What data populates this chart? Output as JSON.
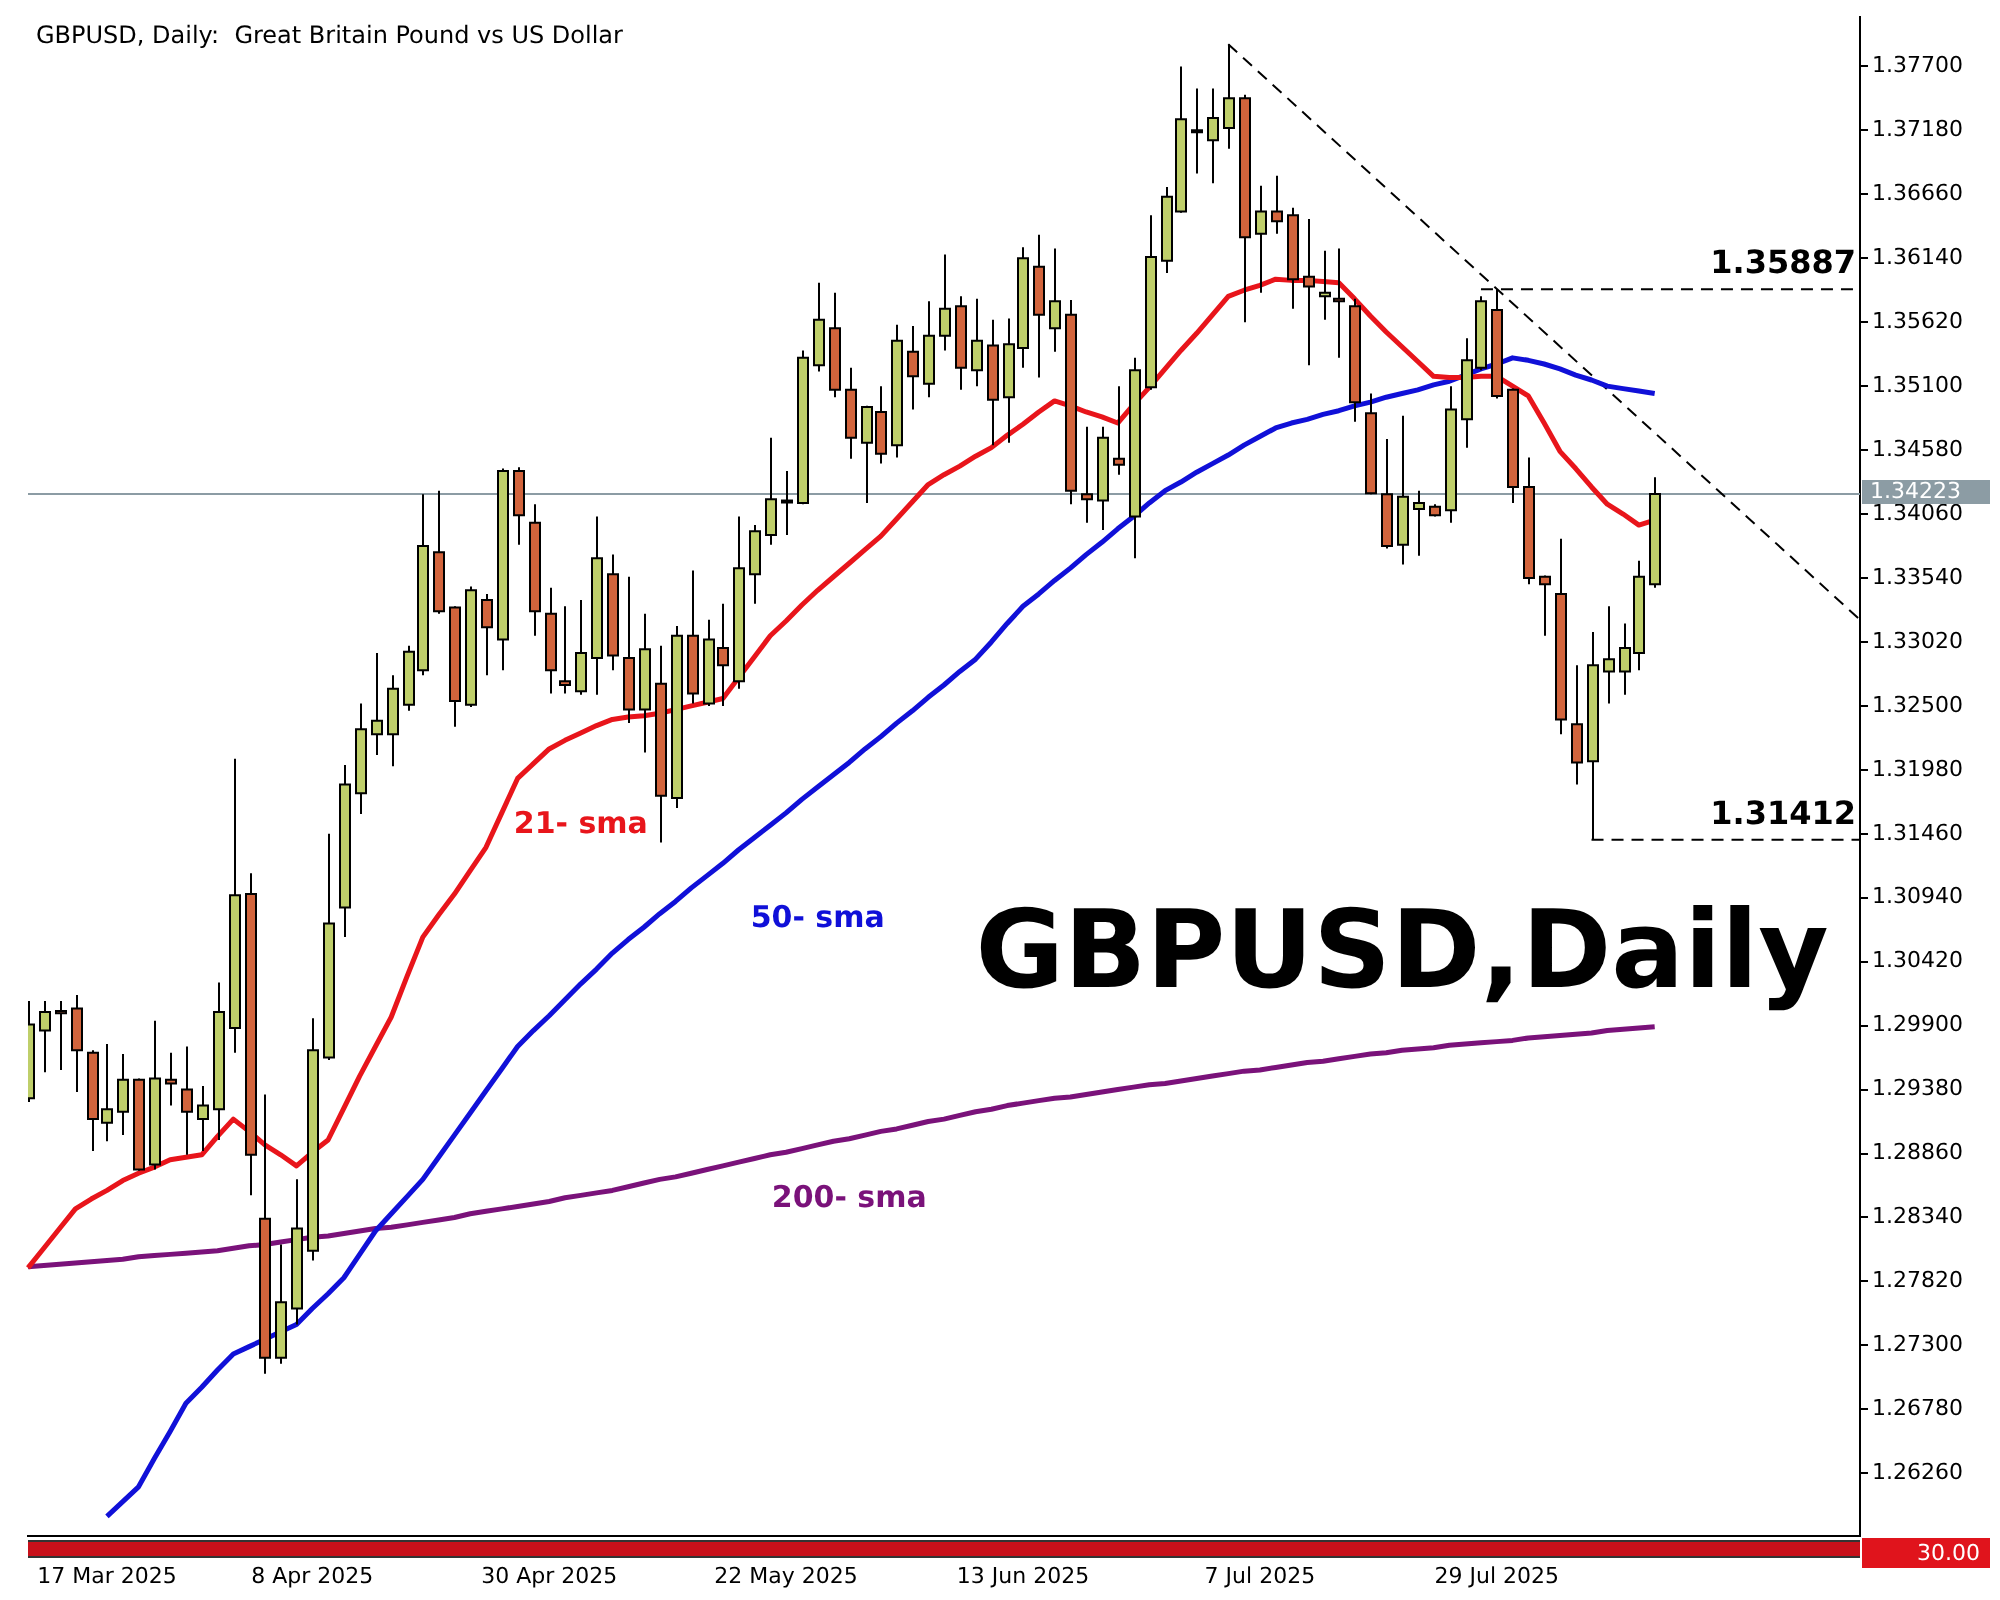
{
  "chart_data": {
    "type": "candlestick",
    "title": "GBPUSD, Daily:  Great Britain Pound vs US Dollar",
    "categories": [
      null,
      null,
      null,
      null,
      null,
      "17 Mar 2025",
      null,
      null,
      null,
      null,
      null,
      null,
      null,
      null,
      null,
      null,
      null,
      null,
      "8 Apr 2025",
      null,
      null,
      null,
      null,
      null,
      null,
      null,
      null,
      null,
      null,
      null,
      null,
      null,
      null,
      "30 Apr 2025",
      null,
      null,
      null,
      null,
      null,
      null,
      null,
      null,
      null,
      null,
      null,
      null,
      null,
      null,
      "22 May 2025",
      null,
      null,
      null,
      null,
      null,
      null,
      null,
      null,
      null,
      null,
      null,
      null,
      null,
      null,
      "13 Jun 2025",
      null,
      null,
      null,
      null,
      null,
      null,
      null,
      null,
      null,
      null,
      null,
      null,
      null,
      null,
      "7 Jul 2025",
      null,
      null,
      null,
      null,
      null,
      null,
      null,
      null,
      null,
      null,
      null,
      null,
      null,
      null,
      "29 Jul 2025",
      null,
      null,
      null,
      null,
      null,
      null,
      null,
      null,
      null,
      null,
      null,
      null,
      null,
      null,
      null,
      null,
      null,
      null,
      null,
      null,
      null,
      null,
      null
    ],
    "ohlc": [
      [
        1.2931,
        1.301,
        1.2928,
        1.2991
      ],
      [
        1.2986,
        1.301,
        1.2952,
        1.3001
      ],
      [
        1.3002,
        1.301,
        1.2954,
        1.3
      ],
      [
        1.3004,
        1.3015,
        1.2936,
        1.297
      ],
      [
        1.2968,
        1.297,
        1.2888,
        1.2914
      ],
      [
        1.2911,
        1.2975,
        1.2896,
        1.2922
      ],
      [
        1.292,
        1.2967,
        1.2901,
        1.2946
      ],
      [
        1.2946,
        1.2947,
        1.2872,
        1.2873
      ],
      [
        1.2877,
        1.2994,
        1.2873,
        1.2947
      ],
      [
        1.2946,
        1.2968,
        1.2925,
        1.2943
      ],
      [
        1.2938,
        1.2973,
        1.2885,
        1.292
      ],
      [
        1.2914,
        1.2941,
        1.2888,
        1.2925
      ],
      [
        1.2922,
        1.3025,
        1.2897,
        1.3001
      ],
      [
        1.2988,
        1.3207,
        1.2968,
        1.3096
      ],
      [
        1.3097,
        1.3114,
        1.2852,
        1.2885
      ],
      [
        1.2833,
        1.2934,
        1.2707,
        1.272
      ],
      [
        1.272,
        1.2812,
        1.2715,
        1.2765
      ],
      [
        1.276,
        1.2865,
        1.2747,
        1.2825
      ],
      [
        1.2807,
        1.2996,
        1.2799,
        1.297
      ],
      [
        1.2964,
        1.3146,
        1.2962,
        1.3073
      ],
      [
        1.3086,
        1.3202,
        1.3062,
        1.3186
      ],
      [
        1.3179,
        1.3252,
        1.3162,
        1.3231
      ],
      [
        1.3227,
        1.3293,
        1.321,
        1.3238
      ],
      [
        1.3227,
        1.3275,
        1.3201,
        1.3264
      ],
      [
        1.3251,
        1.3299,
        1.3246,
        1.3294
      ],
      [
        1.3279,
        1.3422,
        1.3275,
        1.338
      ],
      [
        1.3375,
        1.3425,
        1.3325,
        1.3327
      ],
      [
        1.333,
        1.3331,
        1.3233,
        1.3254
      ],
      [
        1.3251,
        1.3347,
        1.3249,
        1.3344
      ],
      [
        1.3336,
        1.3341,
        1.3275,
        1.3314
      ],
      [
        1.3304,
        1.3443,
        1.3279,
        1.3441
      ],
      [
        1.3441,
        1.3444,
        1.3381,
        1.3405
      ],
      [
        1.3399,
        1.3414,
        1.3307,
        1.3327
      ],
      [
        1.3325,
        1.3346,
        1.326,
        1.3279
      ],
      [
        1.327,
        1.3331,
        1.326,
        1.3267
      ],
      [
        1.3262,
        1.3336,
        1.3259,
        1.3293
      ],
      [
        1.3289,
        1.3404,
        1.3259,
        1.337
      ],
      [
        1.3357,
        1.3373,
        1.3279,
        1.3291
      ],
      [
        1.3289,
        1.3355,
        1.3236,
        1.3247
      ],
      [
        1.3247,
        1.3325,
        1.3212,
        1.3296
      ],
      [
        1.3268,
        1.3299,
        1.3139,
        1.3177
      ],
      [
        1.3175,
        1.3315,
        1.3167,
        1.3307
      ],
      [
        1.3307,
        1.336,
        1.3252,
        1.326
      ],
      [
        1.3252,
        1.332,
        1.325,
        1.3304
      ],
      [
        1.3297,
        1.3333,
        1.325,
        1.3283
      ],
      [
        1.327,
        1.3404,
        1.3264,
        1.3362
      ],
      [
        1.3357,
        1.3397,
        1.3333,
        1.3392
      ],
      [
        1.3389,
        1.3468,
        1.3381,
        1.3418
      ],
      [
        1.3417,
        1.3441,
        1.3389,
        1.3416
      ],
      [
        1.3415,
        1.3539,
        1.3414,
        1.3533
      ],
      [
        1.3527,
        1.3594,
        1.3522,
        1.3564
      ],
      [
        1.3557,
        1.3586,
        1.3501,
        1.3507
      ],
      [
        1.3507,
        1.3525,
        1.3451,
        1.3468
      ],
      [
        1.3464,
        1.3494,
        1.3415,
        1.3493
      ],
      [
        1.3489,
        1.351,
        1.3447,
        1.3455
      ],
      [
        1.3462,
        1.356,
        1.3452,
        1.3547
      ],
      [
        1.3538,
        1.3559,
        1.3491,
        1.3518
      ],
      [
        1.3512,
        1.3579,
        1.3501,
        1.3551
      ],
      [
        1.3551,
        1.3617,
        1.3539,
        1.3573
      ],
      [
        1.3575,
        1.3583,
        1.3507,
        1.3525
      ],
      [
        1.3523,
        1.3581,
        1.351,
        1.3547
      ],
      [
        1.3543,
        1.3564,
        1.3462,
        1.3499
      ],
      [
        1.3501,
        1.3565,
        1.3464,
        1.3544
      ],
      [
        1.3541,
        1.3623,
        1.3525,
        1.3614
      ],
      [
        1.3607,
        1.3633,
        1.3517,
        1.3568
      ],
      [
        1.3557,
        1.3622,
        1.3538,
        1.3579
      ],
      [
        1.3568,
        1.358,
        1.3414,
        1.3425
      ],
      [
        1.3422,
        1.3477,
        1.3399,
        1.3418
      ],
      [
        1.3417,
        1.3477,
        1.3393,
        1.3468
      ],
      [
        1.3451,
        1.351,
        1.3438,
        1.3446
      ],
      [
        1.3404,
        1.3533,
        1.337,
        1.3523
      ],
      [
        1.3509,
        1.3649,
        1.3507,
        1.3615
      ],
      [
        1.3612,
        1.3672,
        1.3602,
        1.3664
      ],
      [
        1.3652,
        1.377,
        1.3651,
        1.3727
      ],
      [
        1.3718,
        1.3752,
        1.3683,
        1.3717
      ],
      [
        1.371,
        1.3752,
        1.3675,
        1.3728
      ],
      [
        1.372,
        1.3788,
        1.3703,
        1.3744
      ],
      [
        1.3744,
        1.3747,
        1.3562,
        1.3631
      ],
      [
        1.3634,
        1.3673,
        1.3586,
        1.3652
      ],
      [
        1.3652,
        1.3681,
        1.3634,
        1.3644
      ],
      [
        1.3649,
        1.3655,
        1.3573,
        1.3597
      ],
      [
        1.3599,
        1.3646,
        1.3527,
        1.3591
      ],
      [
        1.3583,
        1.362,
        1.3564,
        1.3586
      ],
      [
        1.3581,
        1.3622,
        1.3533,
        1.3579
      ],
      [
        1.3575,
        1.3581,
        1.3481,
        1.3497
      ],
      [
        1.3488,
        1.3504,
        1.3422,
        1.3423
      ],
      [
        1.3422,
        1.3467,
        1.3378,
        1.338
      ],
      [
        1.3381,
        1.3486,
        1.3365,
        1.342
      ],
      [
        1.341,
        1.3425,
        1.3372,
        1.3415
      ],
      [
        1.3412,
        1.3414,
        1.3404,
        1.3405
      ],
      [
        1.3409,
        1.351,
        1.3399,
        1.3491
      ],
      [
        1.3483,
        1.3549,
        1.346,
        1.3531
      ],
      [
        1.3525,
        1.3583,
        1.3523,
        1.3579
      ],
      [
        1.3572,
        1.35887,
        1.35,
        1.3502
      ],
      [
        1.3507,
        1.3508,
        1.3415,
        1.3428
      ],
      [
        1.3428,
        1.3452,
        1.3349,
        1.3354
      ],
      [
        1.3355,
        1.3356,
        1.3307,
        1.3349
      ],
      [
        1.3341,
        1.3386,
        1.3227,
        1.3239
      ],
      [
        1.3235,
        1.3283,
        1.3186,
        1.3204
      ],
      [
        1.3205,
        1.331,
        1.31412,
        1.3283
      ],
      [
        1.3278,
        1.3331,
        1.3252,
        1.3288
      ],
      [
        1.3278,
        1.3317,
        1.3259,
        1.3297
      ],
      [
        1.3293,
        1.3368,
        1.3279,
        1.3355
      ],
      [
        1.3349,
        1.3436,
        1.3346,
        1.34223
      ],
      null,
      null,
      null,
      null,
      null,
      null,
      null,
      null,
      null,
      null,
      null,
      null,
      null
    ],
    "colors": [
      "#bfcf6a",
      "#bfcf6a",
      "#d2643c",
      "#d2643c",
      "#d2643c",
      "#bfcf6a",
      "#bfcf6a",
      "#d2643c",
      "#bfcf6a",
      "#d2643c",
      "#d2643c",
      "#bfcf6a",
      "#bfcf6a",
      "#bfcf6a",
      "#d2643c",
      "#d2643c",
      "#bfcf6a",
      "#bfcf6a",
      "#bfcf6a",
      "#bfcf6a",
      "#bfcf6a",
      "#bfcf6a",
      "#bfcf6a",
      "#bfcf6a",
      "#bfcf6a",
      "#bfcf6a",
      "#d2643c",
      "#d2643c",
      "#bfcf6a",
      "#d2643c",
      "#bfcf6a",
      "#d2643c",
      "#d2643c",
      "#d2643c",
      "#d2643c",
      "#bfcf6a",
      "#bfcf6a",
      "#d2643c",
      "#d2643c",
      "#bfcf6a",
      "#d2643c",
      "#bfcf6a",
      "#d2643c",
      "#bfcf6a",
      "#d2643c",
      "#bfcf6a",
      "#bfcf6a",
      "#bfcf6a",
      "#d2643c",
      "#bfcf6a",
      "#bfcf6a",
      "#d2643c",
      "#d2643c",
      "#bfcf6a",
      "#d2643c",
      "#bfcf6a",
      "#d2643c",
      "#bfcf6a",
      "#bfcf6a",
      "#d2643c",
      "#bfcf6a",
      "#d2643c",
      "#bfcf6a",
      "#bfcf6a",
      "#d2643c",
      "#bfcf6a",
      "#d2643c",
      "#d2643c",
      "#bfcf6a",
      "#d2643c",
      "#bfcf6a",
      "#bfcf6a",
      "#bfcf6a",
      "#bfcf6a",
      "#d2643c",
      "#bfcf6a",
      "#bfcf6a",
      "#d2643c",
      "#bfcf6a",
      "#d2643c",
      "#d2643c",
      "#d2643c",
      "#bfcf6a",
      "#d2643c",
      "#d2643c",
      "#d2643c",
      "#d2643c",
      "#bfcf6a",
      "#bfcf6a",
      "#d2643c",
      "#bfcf6a",
      "#bfcf6a",
      "#bfcf6a",
      "#d2643c",
      "#d2643c",
      "#d2643c",
      "#d2643c",
      "#d2643c",
      "#d2643c",
      "#bfcf6a",
      "#bfcf6a",
      "#bfcf6a",
      "#bfcf6a",
      "#bfcf6a",
      null,
      null,
      null,
      null,
      null,
      null,
      null,
      null,
      null,
      null,
      null,
      null,
      null
    ],
    "series": [
      {
        "type": "line",
        "name": "21- sma",
        "color": "#e8151b",
        "values": [
          1.2793,
          1.2809,
          1.2825,
          1.2841,
          1.2849,
          1.2856,
          1.2864,
          1.287,
          1.2875,
          1.2881,
          1.2883,
          1.2885,
          1.29,
          1.2914,
          1.2904,
          1.2893,
          1.2885,
          1.2876,
          1.2887,
          1.2897,
          1.2923,
          1.2949,
          1.2973,
          1.2997,
          1.303,
          1.3062,
          1.308,
          1.3097,
          1.3116,
          1.3135,
          1.3163,
          1.3191,
          1.3203,
          1.3215,
          1.3222,
          1.3228,
          1.3234,
          1.3239,
          1.3241,
          1.3242,
          1.3244,
          1.3247,
          1.325,
          1.3253,
          1.3256,
          1.3273,
          1.329,
          1.3307,
          1.3319,
          1.3332,
          1.3344,
          1.3355,
          1.3366,
          1.3377,
          1.3388,
          1.3402,
          1.3416,
          1.343,
          1.3438,
          1.3445,
          1.3453,
          1.346,
          1.347,
          1.3479,
          1.3489,
          1.3498,
          1.3494,
          1.3489,
          1.3485,
          1.348,
          1.3495,
          1.3509,
          1.3524,
          1.3539,
          1.3553,
          1.3568,
          1.3583,
          1.3588,
          1.3592,
          1.3597,
          1.3596,
          1.3596,
          1.3595,
          1.3594,
          1.3581,
          1.3567,
          1.3554,
          1.3542,
          1.353,
          1.3518,
          1.3517,
          1.3517,
          1.3518,
          1.3518,
          1.351,
          1.3502,
          1.348,
          1.3457,
          1.3443,
          1.3428,
          1.3414,
          1.3406,
          1.3397,
          1.3401,
          null,
          null,
          null,
          null,
          null,
          null,
          null,
          null,
          null,
          null,
          null,
          null,
          null
        ]
      },
      {
        "type": "line",
        "name": "50- sma",
        "color": "#1010d8",
        "values": [
          null,
          null,
          null,
          null,
          null,
          1.2591,
          1.2603,
          1.2615,
          1.2638,
          1.266,
          1.2683,
          1.2696,
          1.271,
          1.2723,
          1.2729,
          1.2735,
          1.2741,
          1.2747,
          1.276,
          1.2772,
          1.2785,
          1.2804,
          1.2823,
          1.2837,
          1.2851,
          1.2865,
          1.2883,
          1.2901,
          1.2919,
          1.2937,
          1.2955,
          1.2973,
          1.2986,
          1.2998,
          1.3011,
          1.3024,
          1.3036,
          1.3049,
          1.306,
          1.307,
          1.3081,
          1.3091,
          1.3102,
          1.3112,
          1.3122,
          1.3133,
          1.3143,
          1.3153,
          1.3163,
          1.3174,
          1.3184,
          1.3194,
          1.3204,
          1.3215,
          1.3225,
          1.3236,
          1.3246,
          1.3257,
          1.3267,
          1.3278,
          1.3288,
          1.3302,
          1.3317,
          1.3331,
          1.3341,
          1.3352,
          1.3362,
          1.3373,
          1.3383,
          1.3394,
          1.3404,
          1.3415,
          1.3425,
          1.3432,
          1.344,
          1.3447,
          1.3454,
          1.3462,
          1.3469,
          1.3476,
          1.348,
          1.3483,
          1.3487,
          1.349,
          1.3494,
          1.3497,
          1.3501,
          1.3504,
          1.3507,
          1.3511,
          1.3514,
          1.3519,
          1.3524,
          1.3528,
          1.3533,
          1.3531,
          1.3528,
          1.3524,
          1.3519,
          1.3515,
          1.351,
          1.3508,
          1.3506,
          1.3504,
          null,
          null,
          null,
          null,
          null,
          null,
          null,
          null,
          null,
          null,
          null,
          null,
          null
        ]
      },
      {
        "type": "line",
        "name": "200- sma",
        "color": "#7a127a",
        "values": [
          1.2794,
          1.2795,
          1.2796,
          1.2797,
          1.2798,
          1.2799,
          1.28,
          1.2802,
          1.2803,
          1.2804,
          1.2805,
          1.2806,
          1.2807,
          1.2809,
          1.2811,
          1.2812,
          1.2814,
          1.2816,
          1.2818,
          1.2819,
          1.2821,
          1.2823,
          1.2825,
          1.2826,
          1.2828,
          1.283,
          1.2832,
          1.2834,
          1.2837,
          1.2839,
          1.2841,
          1.2843,
          1.2845,
          1.2847,
          1.285,
          1.2852,
          1.2854,
          1.2856,
          1.2859,
          1.2862,
          1.2865,
          1.2867,
          1.287,
          1.2873,
          1.2876,
          1.2879,
          1.2882,
          1.2885,
          1.2887,
          1.289,
          1.2893,
          1.2896,
          1.2898,
          1.2901,
          1.2904,
          1.2906,
          1.2909,
          1.2912,
          1.2914,
          1.2917,
          1.292,
          1.2922,
          1.2925,
          1.2927,
          1.2929,
          1.2931,
          1.2932,
          1.2934,
          1.2936,
          1.2938,
          1.294,
          1.2942,
          1.2943,
          1.2945,
          1.2947,
          1.2949,
          1.2951,
          1.2953,
          1.2954,
          1.2956,
          1.2958,
          1.296,
          1.2961,
          1.2963,
          1.2965,
          1.2967,
          1.2968,
          1.297,
          1.2971,
          1.2972,
          1.2974,
          1.2975,
          1.2976,
          1.2977,
          1.2978,
          1.298,
          1.2981,
          1.2982,
          1.2983,
          1.2984,
          1.2986,
          1.2987,
          1.2988,
          1.2989,
          null,
          null,
          null,
          null,
          null,
          null,
          null,
          null,
          null,
          null,
          null,
          null,
          null
        ]
      },
      {
        "type": "line",
        "color": "#000000",
        "line_style": "dashed",
        "values": [
          null,
          null,
          null,
          null,
          null,
          null,
          null,
          null,
          null,
          null,
          null,
          null,
          null,
          null,
          null,
          null,
          null,
          null,
          null,
          null,
          null,
          null,
          null,
          null,
          null,
          null,
          null,
          null,
          null,
          null,
          null,
          null,
          null,
          null,
          null,
          null,
          null,
          null,
          null,
          null,
          null,
          null,
          null,
          null,
          null,
          null,
          null,
          null,
          null,
          null,
          null,
          null,
          null,
          null,
          null,
          null,
          null,
          null,
          null,
          null,
          null,
          null,
          null,
          null,
          null,
          null,
          null,
          null,
          null,
          null,
          null,
          null,
          null,
          null,
          null,
          null,
          1.3788,
          null,
          null,
          null,
          null,
          null,
          null,
          null,
          null,
          null,
          null,
          null,
          null,
          null,
          null,
          null,
          null,
          null,
          null,
          null,
          null,
          null,
          null,
          null,
          null,
          null,
          null,
          null,
          null,
          null,
          null,
          null,
          null,
          null,
          null,
          null,
          null,
          null,
          null,
          null,
          1.332
        ]
      },
      {
        "type": "line",
        "color": "#000000",
        "line_style": "dashed",
        "values": [
          null,
          null,
          null,
          null,
          null,
          null,
          null,
          null,
          null,
          null,
          null,
          null,
          null,
          null,
          null,
          null,
          null,
          null,
          null,
          null,
          null,
          null,
          null,
          null,
          null,
          null,
          null,
          null,
          null,
          null,
          null,
          null,
          null,
          null,
          null,
          null,
          null,
          null,
          null,
          null,
          null,
          null,
          null,
          null,
          null,
          null,
          null,
          null,
          null,
          null,
          null,
          null,
          null,
          null,
          null,
          null,
          null,
          null,
          null,
          null,
          null,
          null,
          null,
          null,
          null,
          null,
          null,
          null,
          null,
          null,
          null,
          null,
          null,
          null,
          null,
          null,
          null,
          null,
          null,
          null,
          null,
          null,
          null,
          null,
          null,
          null,
          null,
          null,
          null,
          null,
          null,
          null,
          1.35887,
          1.35887,
          1.35887,
          1.35887,
          1.35887,
          1.35887,
          1.35887,
          1.35887,
          1.35887,
          1.35887,
          1.35887,
          1.35887,
          1.35887,
          1.35887,
          1.35887,
          1.35887,
          1.35887,
          1.35887,
          1.35887,
          1.35887,
          1.35887,
          1.35887,
          1.35887,
          1.35887,
          1.35887
        ]
      },
      {
        "type": "line",
        "color": "#000000",
        "line_style": "dashed",
        "values": [
          null,
          null,
          null,
          null,
          null,
          null,
          null,
          null,
          null,
          null,
          null,
          null,
          null,
          null,
          null,
          null,
          null,
          null,
          null,
          null,
          null,
          null,
          null,
          null,
          null,
          null,
          null,
          null,
          null,
          null,
          null,
          null,
          null,
          null,
          null,
          null,
          null,
          null,
          null,
          null,
          null,
          null,
          null,
          null,
          null,
          null,
          null,
          null,
          null,
          null,
          null,
          null,
          null,
          null,
          null,
          null,
          null,
          null,
          null,
          null,
          null,
          null,
          null,
          null,
          null,
          null,
          null,
          null,
          null,
          null,
          null,
          null,
          null,
          null,
          null,
          null,
          null,
          null,
          null,
          null,
          null,
          null,
          null,
          null,
          null,
          null,
          null,
          null,
          null,
          null,
          null,
          null,
          null,
          null,
          null,
          null,
          null,
          null,
          null,
          1.31412,
          1.31412,
          1.31412,
          1.31412,
          1.31412,
          1.31412,
          1.31412,
          1.31412,
          1.31412,
          1.31412,
          1.31412,
          1.31412,
          1.31412,
          1.31412,
          1.31412,
          1.31412,
          1.31412,
          1.31412
        ]
      }
    ],
    "ylim": [
      1.2575,
      1.381
    ],
    "yticks": [
      {
        "value": 1.377,
        "label": "1.37700"
      },
      {
        "value": 1.3718,
        "label": "1.37180"
      },
      {
        "value": 1.3666,
        "label": "1.36660"
      },
      {
        "value": 1.3614,
        "label": "1.36140"
      },
      {
        "value": 1.3562,
        "label": "1.35620"
      },
      {
        "value": 1.351,
        "label": "1.35100"
      },
      {
        "value": 1.3458,
        "label": "1.34580"
      },
      {
        "value": 1.3406,
        "label": "1.34060"
      },
      {
        "value": 1.3354,
        "label": "1.33540"
      },
      {
        "value": 1.3302,
        "label": "1.33020"
      },
      {
        "value": 1.325,
        "label": "1.32500"
      },
      {
        "value": 1.3198,
        "label": "1.31980"
      },
      {
        "value": 1.3146,
        "label": "1.31460"
      },
      {
        "value": 1.3094,
        "label": "1.30940"
      },
      {
        "value": 1.3042,
        "label": "1.30420"
      },
      {
        "value": 1.299,
        "label": "1.29900"
      },
      {
        "value": 1.2938,
        "label": "1.29380"
      },
      {
        "value": 1.2886,
        "label": "1.28860"
      },
      {
        "value": 1.2834,
        "label": "1.28340"
      },
      {
        "value": 1.2782,
        "label": "1.27820"
      },
      {
        "value": 1.273,
        "label": "1.27300"
      },
      {
        "value": 1.2678,
        "label": "1.26780"
      },
      {
        "value": 1.2626,
        "label": "1.26260"
      }
    ],
    "ref_lines": [
      {
        "axis": "y",
        "value": 1.34223,
        "label": "1.34223",
        "color": "#8c9ca4"
      }
    ],
    "annotations": [
      "GBPUSD,Daily",
      "30.00",
      {
        "text": "1.35887",
        "y": 1.35887
      },
      {
        "text": "1.31412",
        "y": 1.31412
      }
    ]
  }
}
